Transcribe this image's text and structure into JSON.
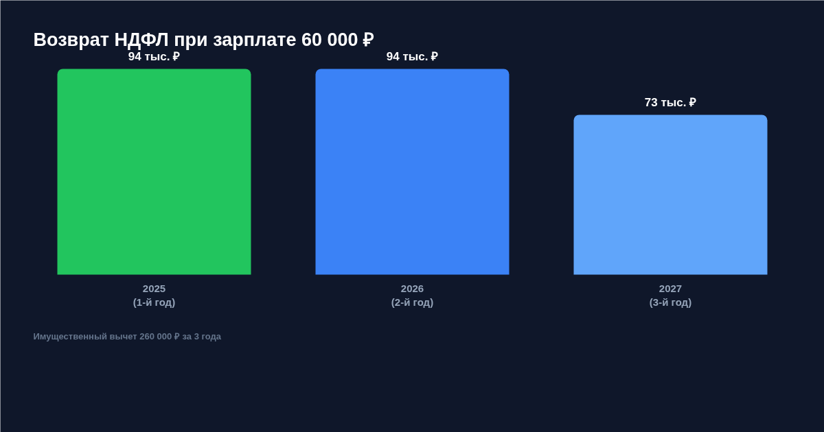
{
  "chart_data": {
    "type": "bar",
    "title": "Возврат НДФЛ при зарплате 60 000 ₽",
    "categories": [
      "2025\n(1-й год)",
      "2026\n(2-й год)",
      "2027\n(3-й год)"
    ],
    "values": [
      94,
      94,
      73
    ],
    "colors": [
      "#22c55e",
      "#3b82f6",
      "#60a5fa"
    ],
    "value_labels": [
      "94 тыс. ₽",
      "94 тыс. ₽",
      "73 тыс. ₽"
    ],
    "annotations": [
      "Имущественный вычет 260 000 ₽ за 3 года"
    ]
  }
}
